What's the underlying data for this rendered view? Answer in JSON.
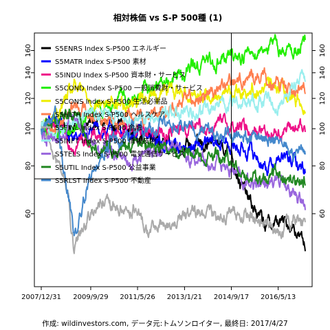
{
  "chart_data": {
    "type": "line",
    "title": "相対株価 vs S-P 500種 (1)",
    "caption": "作成: wildinvestors.com, データ元:トムソンロイター, 最終日: 2017/4/27",
    "y_scale": "log",
    "ylim": [
      40,
      172
    ],
    "y_ticks": [
      60,
      80,
      100,
      120,
      140,
      160
    ],
    "x_range": [
      "2007-12-31",
      "2017-04-27"
    ],
    "x_ticks": [
      "2007/12/31",
      "2009/9/29",
      "2011/5/26",
      "2013/1/21",
      "2014/9/17",
      "2016/5/13"
    ],
    "grid": false,
    "legend_position": "top-left",
    "reference_lines": {
      "horizontal_y": 74,
      "vertical_x": "2014-09-17"
    },
    "series": [
      {
        "name": "S5ENRS Index S-P500 エネルギー",
        "color": "#000000",
        "values": [
          [
            "2007-12-31",
            100
          ],
          [
            "2008-06-30",
            102
          ],
          [
            "2009-03-01",
            101
          ],
          [
            "2010-01-01",
            104
          ],
          [
            "2011-04-01",
            98
          ],
          [
            "2012-06-01",
            93
          ],
          [
            "2013-06-01",
            90
          ],
          [
            "2014-06-01",
            91
          ],
          [
            "2014-09-17",
            88
          ],
          [
            "2015-01-15",
            72
          ],
          [
            "2015-06-01",
            63
          ],
          [
            "2015-12-01",
            56
          ],
          [
            "2016-06-01",
            57
          ],
          [
            "2016-12-01",
            56
          ],
          [
            "2017-04-27",
            49
          ]
        ]
      },
      {
        "name": "S5MATR Index S-P500 素材",
        "color": "#0000ff",
        "values": [
          [
            "2007-12-31",
            100
          ],
          [
            "2008-06-30",
            103
          ],
          [
            "2009-03-01",
            94
          ],
          [
            "2010-01-01",
            99
          ],
          [
            "2011-04-01",
            98
          ],
          [
            "2012-06-01",
            91
          ],
          [
            "2013-06-01",
            89
          ],
          [
            "2014-06-01",
            92
          ],
          [
            "2015-06-01",
            87
          ],
          [
            "2016-01-01",
            79
          ],
          [
            "2016-06-01",
            84
          ],
          [
            "2016-12-01",
            82
          ],
          [
            "2017-04-27",
            78
          ]
        ]
      },
      {
        "name": "S5INDU Index S-P500 資本財・サービス",
        "color": "#ee1188",
        "values": [
          [
            "2007-12-31",
            100
          ],
          [
            "2008-06-30",
            98
          ],
          [
            "2009-03-01",
            92
          ],
          [
            "2010-01-01",
            96
          ],
          [
            "2011-04-01",
            100
          ],
          [
            "2012-06-01",
            97
          ],
          [
            "2013-06-01",
            100
          ],
          [
            "2014-06-01",
            102
          ],
          [
            "2015-06-01",
            100
          ],
          [
            "2016-06-01",
            98
          ],
          [
            "2016-12-01",
            101
          ],
          [
            "2017-04-27",
            98
          ]
        ]
      },
      {
        "name": "S5COND Index S-P500 一般消費財・サービス",
        "color": "#22ee00",
        "values": [
          [
            "2007-12-31",
            100
          ],
          [
            "2008-06-30",
            96
          ],
          [
            "2009-03-01",
            98
          ],
          [
            "2010-01-01",
            112
          ],
          [
            "2011-04-01",
            122
          ],
          [
            "2012-06-01",
            132
          ],
          [
            "2013-06-01",
            146
          ],
          [
            "2014-06-01",
            152
          ],
          [
            "2015-06-01",
            158
          ],
          [
            "2016-01-01",
            166
          ],
          [
            "2016-06-01",
            162
          ],
          [
            "2016-12-01",
            160
          ],
          [
            "2017-04-27",
            166
          ]
        ]
      },
      {
        "name": "S5CONS Index S-P500 生活必需品",
        "color": "#eeee00",
        "values": [
          [
            "2007-12-31",
            100
          ],
          [
            "2008-06-30",
            108
          ],
          [
            "2009-03-01",
            128
          ],
          [
            "2010-01-01",
            116
          ],
          [
            "2011-04-01",
            118
          ],
          [
            "2012-06-01",
            126
          ],
          [
            "2013-06-01",
            124
          ],
          [
            "2014-06-01",
            123
          ],
          [
            "2015-06-01",
            127
          ],
          [
            "2016-06-01",
            130
          ],
          [
            "2016-12-01",
            121
          ],
          [
            "2017-04-27",
            117
          ]
        ]
      },
      {
        "name": "S5HLTH Index S-P500 ヘルスケア",
        "color": "#ff7f50",
        "values": [
          [
            "2007-12-31",
            100
          ],
          [
            "2008-06-30",
            100
          ],
          [
            "2009-03-01",
            116
          ],
          [
            "2010-01-01",
            108
          ],
          [
            "2011-04-01",
            106
          ],
          [
            "2012-06-01",
            112
          ],
          [
            "2013-06-01",
            122
          ],
          [
            "2014-06-01",
            128
          ],
          [
            "2015-06-01",
            138
          ],
          [
            "2016-01-01",
            134
          ],
          [
            "2016-06-01",
            130
          ],
          [
            "2016-12-01",
            124
          ],
          [
            "2017-04-27",
            130
          ]
        ]
      },
      {
        "name": "S5FINL Index S-P500 金融",
        "color": "#aaaaaa",
        "values": [
          [
            "2007-12-31",
            100
          ],
          [
            "2008-06-30",
            84
          ],
          [
            "2008-12-01",
            70
          ],
          [
            "2009-03-01",
            46
          ],
          [
            "2009-06-01",
            55
          ],
          [
            "2010-01-01",
            64
          ],
          [
            "2010-06-01",
            62
          ],
          [
            "2011-04-01",
            62
          ],
          [
            "2011-10-01",
            54
          ],
          [
            "2012-06-01",
            56
          ],
          [
            "2013-06-01",
            60
          ],
          [
            "2014-06-01",
            60
          ],
          [
            "2015-06-01",
            59
          ],
          [
            "2016-02-01",
            56
          ],
          [
            "2016-06-01",
            52
          ],
          [
            "2016-12-01",
            58
          ],
          [
            "2017-04-27",
            58
          ]
        ]
      },
      {
        "name": "S5INFT Index S-P500 情報技術",
        "color": "#99eeee",
        "values": [
          [
            "2007-12-31",
            100
          ],
          [
            "2008-06-30",
            98
          ],
          [
            "2009-03-01",
            104
          ],
          [
            "2010-01-01",
            110
          ],
          [
            "2011-04-01",
            104
          ],
          [
            "2012-06-01",
            112
          ],
          [
            "2013-06-01",
            108
          ],
          [
            "2014-06-01",
            116
          ],
          [
            "2015-06-01",
            118
          ],
          [
            "2016-06-01",
            118
          ],
          [
            "2016-12-01",
            126
          ],
          [
            "2017-04-27",
            138
          ]
        ]
      },
      {
        "name": "S5TELS Index S-P500 電気通信サービス",
        "color": "#9966dd",
        "values": [
          [
            "2007-12-31",
            100
          ],
          [
            "2008-06-30",
            92
          ],
          [
            "2009-03-01",
            108
          ],
          [
            "2010-01-01",
            90
          ],
          [
            "2011-04-01",
            84
          ],
          [
            "2012-06-01",
            90
          ],
          [
            "2013-06-01",
            84
          ],
          [
            "2014-06-01",
            80
          ],
          [
            "2015-06-01",
            72
          ],
          [
            "2016-01-01",
            70
          ],
          [
            "2016-06-01",
            74
          ],
          [
            "2016-12-01",
            68
          ],
          [
            "2017-04-27",
            61
          ]
        ]
      },
      {
        "name": "S5UTIL Index S-P500 公益事業",
        "color": "#228822",
        "values": [
          [
            "2007-12-31",
            100
          ],
          [
            "2008-06-30",
            106
          ],
          [
            "2009-03-01",
            110
          ],
          [
            "2010-01-01",
            88
          ],
          [
            "2011-04-01",
            92
          ],
          [
            "2012-06-01",
            90
          ],
          [
            "2013-06-01",
            86
          ],
          [
            "2014-06-01",
            84
          ],
          [
            "2015-06-01",
            74
          ],
          [
            "2016-01-01",
            72
          ],
          [
            "2016-06-01",
            80
          ],
          [
            "2016-12-01",
            72
          ],
          [
            "2017-04-27",
            75
          ]
        ]
      },
      {
        "name": "S5RLST Index S-P500 不動産",
        "color": "#4488cc",
        "values": [
          [
            "2007-12-31",
            100
          ],
          [
            "2008-06-30",
            110
          ],
          [
            "2008-12-01",
            70
          ],
          [
            "2009-03-01",
            52
          ],
          [
            "2009-09-01",
            74
          ],
          [
            "2010-06-01",
            92
          ],
          [
            "2011-04-01",
            98
          ],
          [
            "2012-06-01",
            102
          ],
          [
            "2013-06-01",
            100
          ],
          [
            "2014-06-01",
            96
          ],
          [
            "2015-06-01",
            94
          ],
          [
            "2016-06-01",
            95
          ],
          [
            "2016-12-01",
            86
          ],
          [
            "2017-04-27",
            88
          ]
        ]
      }
    ]
  }
}
